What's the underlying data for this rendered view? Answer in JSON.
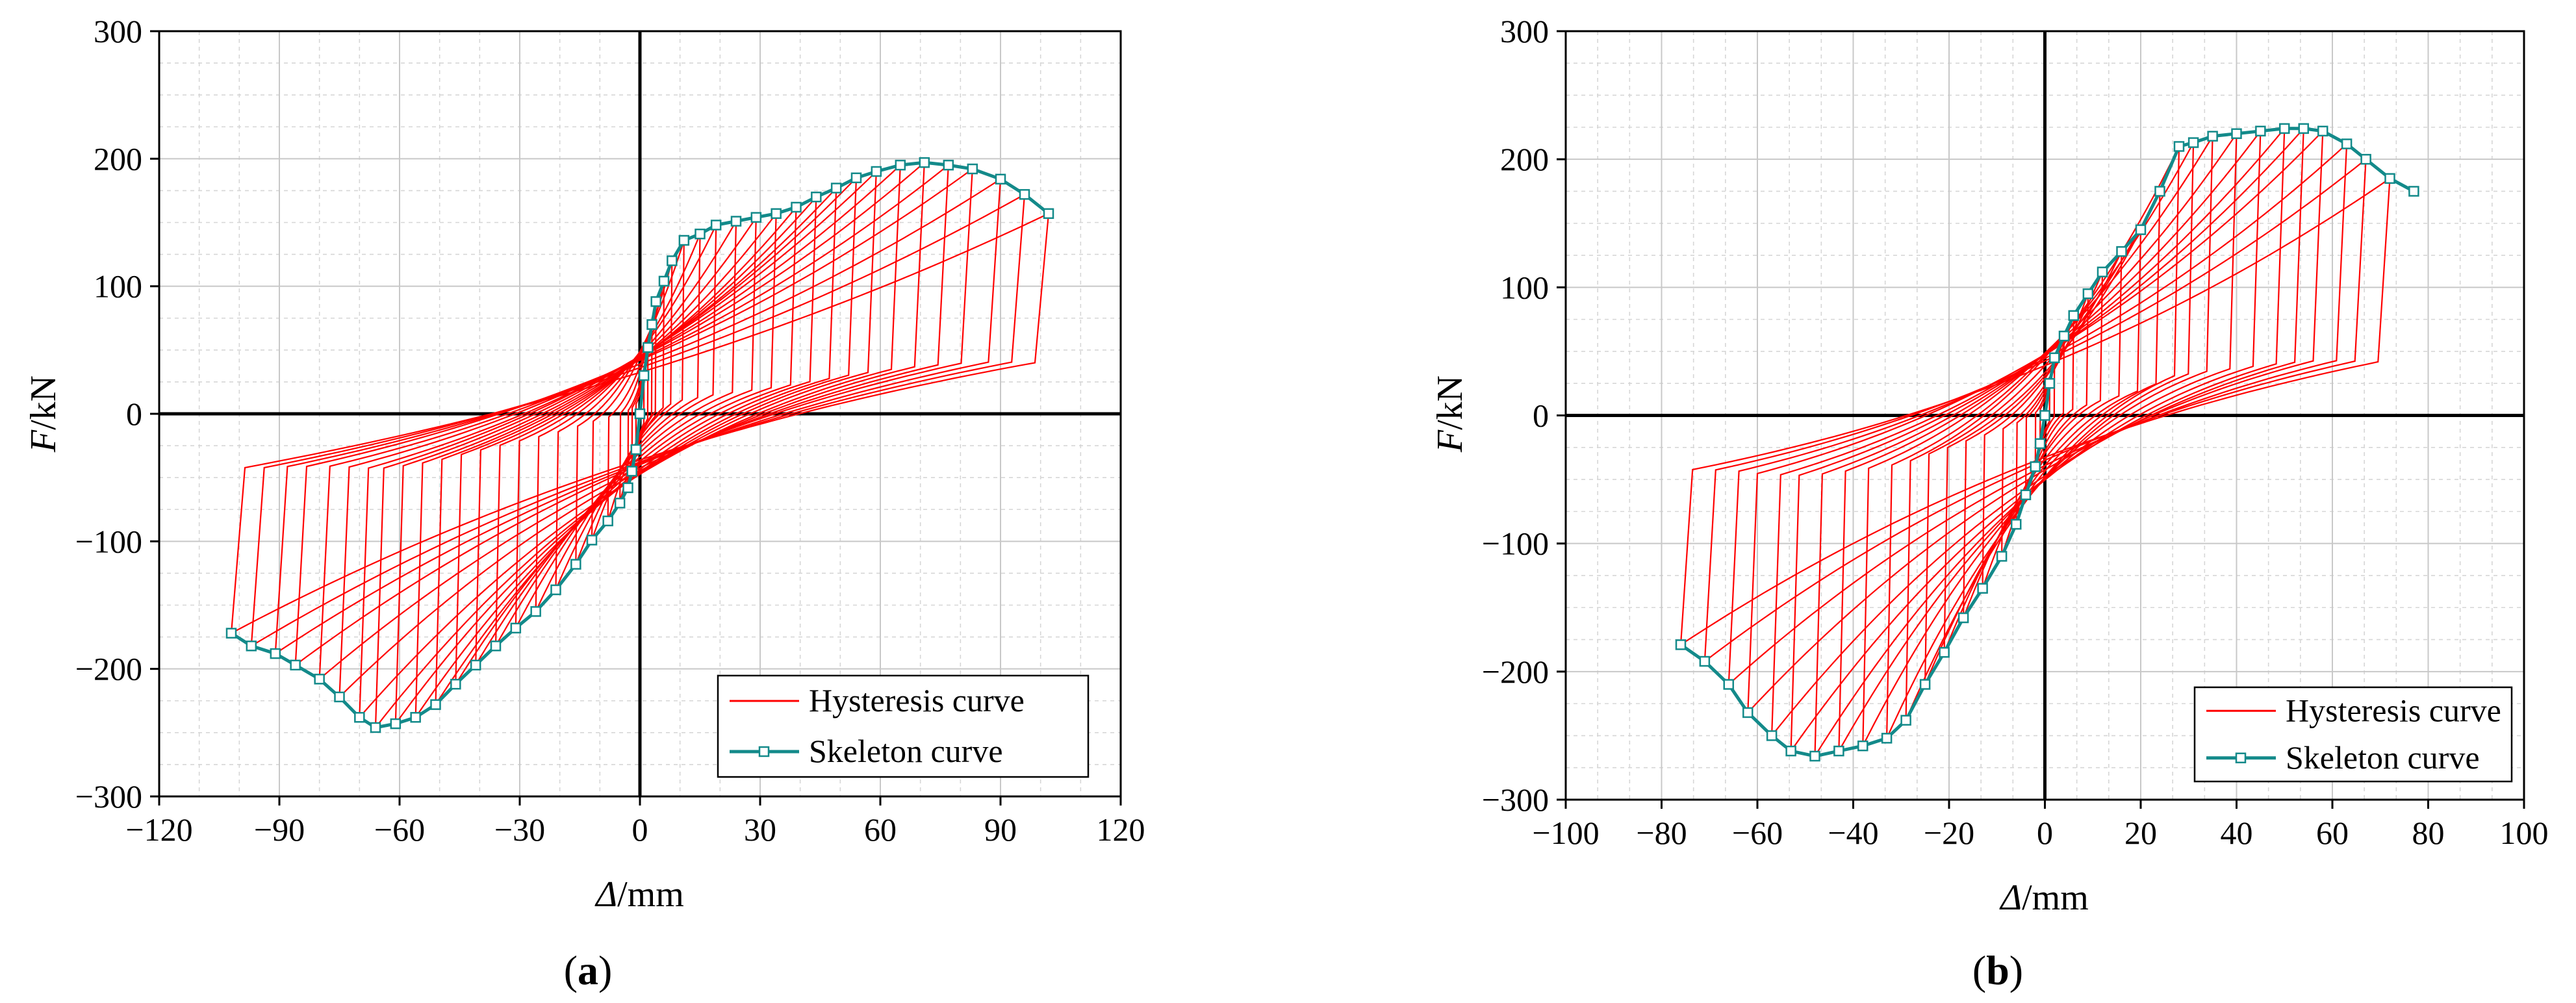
{
  "chart_data": [
    {
      "id": "a",
      "type": "line",
      "panel_label": "(a)",
      "xlabel_italic": "Δ",
      "xlabel_unit": "/mm",
      "ylabel_italic": "F",
      "ylabel_unit": "/kN",
      "xlim": [
        -120,
        120
      ],
      "ylim": [
        -300,
        300
      ],
      "xticks": [
        -120,
        -90,
        -60,
        -30,
        0,
        30,
        60,
        90,
        120
      ],
      "yticks": [
        -300,
        -200,
        -100,
        0,
        100,
        200,
        300
      ],
      "legend_position": "bottom-right",
      "series": [
        {
          "name": "Hysteresis curve",
          "color": "#ff0000",
          "peaks_pos": [
            [
              1,
              30
            ],
            [
              2,
              52
            ],
            [
              3,
              70
            ],
            [
              4,
              88
            ],
            [
              6,
              104
            ],
            [
              8,
              120
            ],
            [
              11,
              136
            ],
            [
              15,
              141
            ],
            [
              19,
              148
            ],
            [
              24,
              151
            ],
            [
              29,
              154
            ],
            [
              34,
              157
            ],
            [
              39,
              162
            ],
            [
              44,
              170
            ],
            [
              49,
              177
            ],
            [
              54,
              185
            ],
            [
              59,
              190
            ],
            [
              65,
              195
            ],
            [
              71,
              197
            ],
            [
              77,
              195
            ],
            [
              83,
              192
            ],
            [
              90,
              184
            ],
            [
              96,
              172
            ],
            [
              102,
              157
            ]
          ],
          "peaks_neg": [
            [
              -1,
              -28
            ],
            [
              -2,
              -45
            ],
            [
              -3,
              -58
            ],
            [
              -5,
              -70
            ],
            [
              -8,
              -84
            ],
            [
              -12,
              -99
            ],
            [
              -16,
              -118
            ],
            [
              -21,
              -138
            ],
            [
              -26,
              -155
            ],
            [
              -31,
              -168
            ],
            [
              -36,
              -182
            ],
            [
              -41,
              -197
            ],
            [
              -46,
              -212
            ],
            [
              -51,
              -228
            ],
            [
              -56,
              -238
            ],
            [
              -61,
              -243
            ],
            [
              -66,
              -246
            ],
            [
              -70,
              -238
            ],
            [
              -75,
              -222
            ],
            [
              -80,
              -208
            ],
            [
              -86,
              -197
            ],
            [
              -91,
              -188
            ],
            [
              -97,
              -182
            ],
            [
              -102,
              -172
            ]
          ],
          "pinch_offset": 28,
          "pinch_slope": 0.35
        },
        {
          "name": "Skeleton curve",
          "color": "#138a8a",
          "x": [
            -102,
            -97,
            -91,
            -86,
            -80,
            -75,
            -70,
            -66,
            -61,
            -56,
            -51,
            -46,
            -41,
            -36,
            -31,
            -26,
            -21,
            -16,
            -12,
            -8,
            -5,
            -3,
            -2,
            -1,
            0,
            1,
            2,
            3,
            4,
            6,
            8,
            11,
            15,
            19,
            24,
            29,
            34,
            39,
            44,
            49,
            54,
            59,
            65,
            71,
            77,
            83,
            90,
            96,
            102
          ],
          "y": [
            -172,
            -182,
            -188,
            -197,
            -208,
            -222,
            -238,
            -246,
            -243,
            -238,
            -228,
            -212,
            -197,
            -182,
            -168,
            -155,
            -138,
            -118,
            -99,
            -84,
            -70,
            -58,
            -45,
            -28,
            0,
            30,
            52,
            70,
            88,
            104,
            120,
            136,
            141,
            148,
            151,
            154,
            157,
            162,
            170,
            177,
            185,
            190,
            195,
            197,
            195,
            192,
            184,
            172,
            157
          ]
        }
      ]
    },
    {
      "id": "b",
      "type": "line",
      "panel_label": "(b)",
      "xlabel_italic": "Δ",
      "xlabel_unit": "/mm",
      "ylabel_italic": "F",
      "ylabel_unit": "/kN",
      "xlim": [
        -100,
        100
      ],
      "ylim": [
        -300,
        300
      ],
      "xticks": [
        -100,
        -80,
        -60,
        -40,
        -20,
        0,
        20,
        40,
        60,
        80,
        100
      ],
      "yticks": [
        -300,
        -200,
        -100,
        0,
        100,
        200,
        300
      ],
      "legend_position": "bottom-right",
      "series": [
        {
          "name": "Hysteresis curve",
          "color": "#ff0000",
          "peaks_pos": [
            [
              1,
              25
            ],
            [
              2,
              45
            ],
            [
              4,
              62
            ],
            [
              6,
              78
            ],
            [
              9,
              95
            ],
            [
              12,
              112
            ],
            [
              16,
              128
            ],
            [
              20,
              145
            ],
            [
              24,
              175
            ],
            [
              28,
              210
            ],
            [
              31,
              213
            ],
            [
              35,
              218
            ],
            [
              40,
              220
            ],
            [
              45,
              222
            ],
            [
              50,
              224
            ],
            [
              54,
              224
            ],
            [
              58,
              222
            ],
            [
              63,
              212
            ],
            [
              67,
              200
            ],
            [
              72,
              185
            ],
            [
              77,
              175
            ]
          ],
          "peaks_neg": [
            [
              -1,
              -22
            ],
            [
              -2,
              -40
            ],
            [
              -4,
              -62
            ],
            [
              -6,
              -85
            ],
            [
              -9,
              -110
            ],
            [
              -13,
              -135
            ],
            [
              -17,
              -158
            ],
            [
              -21,
              -185
            ],
            [
              -25,
              -210
            ],
            [
              -29,
              -238
            ],
            [
              -33,
              -252
            ],
            [
              -38,
              -258
            ],
            [
              -43,
              -262
            ],
            [
              -48,
              -266
            ],
            [
              -53,
              -262
            ],
            [
              -57,
              -250
            ],
            [
              -62,
              -232
            ],
            [
              -66,
              -210
            ],
            [
              -71,
              -192
            ],
            [
              -76,
              -179
            ]
          ],
          "pinch_offset": 20,
          "pinch_slope": 0.4
        },
        {
          "name": "Skeleton curve",
          "color": "#138a8a",
          "x": [
            -76,
            -71,
            -66,
            -62,
            -57,
            -53,
            -48,
            -43,
            -38,
            -33,
            -29,
            -25,
            -21,
            -17,
            -13,
            -9,
            -6,
            -4,
            -2,
            -1,
            0,
            1,
            2,
            4,
            6,
            9,
            12,
            16,
            20,
            24,
            28,
            31,
            35,
            40,
            45,
            50,
            54,
            58,
            63,
            67,
            72,
            77
          ],
          "y": [
            -179,
            -192,
            -210,
            -232,
            -250,
            -262,
            -266,
            -262,
            -258,
            -252,
            -238,
            -210,
            -185,
            -158,
            -135,
            -110,
            -85,
            -62,
            -40,
            -22,
            0,
            25,
            45,
            62,
            78,
            95,
            112,
            128,
            145,
            175,
            210,
            213,
            218,
            220,
            222,
            224,
            224,
            222,
            212,
            200,
            185,
            175
          ]
        }
      ]
    }
  ]
}
